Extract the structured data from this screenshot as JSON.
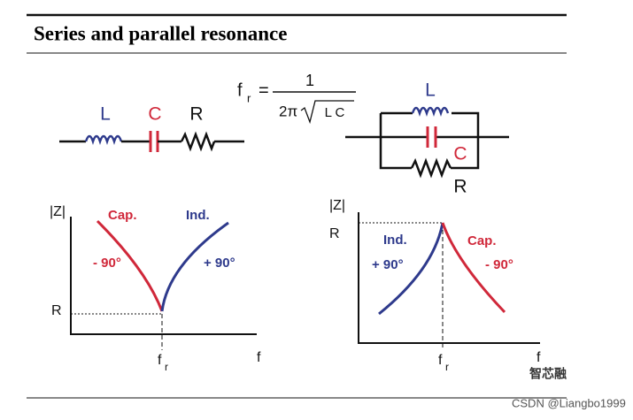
{
  "header": {
    "title": "Series and parallel resonance"
  },
  "formula": {
    "symbol": "f",
    "subscript": "r",
    "equals": "=",
    "numerator": "1",
    "denominator_prefix": "2π",
    "radicand": "L C"
  },
  "series_circuit": {
    "inductor": "L",
    "capacitor": "C",
    "resistor": "R"
  },
  "parallel_circuit": {
    "inductor": "L",
    "capacitor": "C",
    "resistor": "R"
  },
  "series_plot": {
    "y_axis": "|Z|",
    "x_axis": "f",
    "resonance": {
      "symbol": "f",
      "subscript": "r"
    },
    "level": "R",
    "left_branch": {
      "name": "Cap.",
      "phase": "- 90°"
    },
    "right_branch": {
      "name": "Ind.",
      "phase": "+ 90°"
    }
  },
  "parallel_plot": {
    "y_axis": "|Z|",
    "x_axis": "f",
    "resonance": {
      "symbol": "f",
      "subscript": "r"
    },
    "level": "R",
    "left_branch": {
      "name": "Ind.",
      "phase": "+ 90°"
    },
    "right_branch": {
      "name": "Cap.",
      "phase": "- 90°"
    }
  },
  "footer": {
    "brand": "智芯融",
    "credit": "CSDN @Liangbo1999"
  }
}
